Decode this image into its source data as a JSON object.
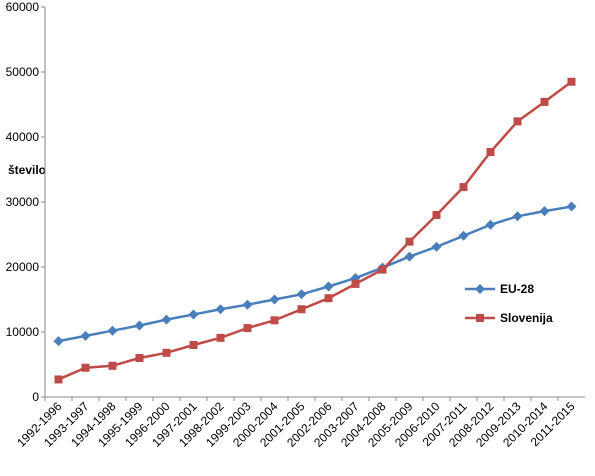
{
  "chart_data": {
    "type": "line",
    "y_label": "število",
    "categories": [
      "1992-1996",
      "1993-1997",
      "1994-1998",
      "1995-1999",
      "1996-2000",
      "1997-2001",
      "1998-2002",
      "1999-2003",
      "2000-2004",
      "2001-2005",
      "2002-2006",
      "2003-2007",
      "2004-2008",
      "2005-2009",
      "2006-2010",
      "2007-2011",
      "2008-2012",
      "2009-2013",
      "2010-2014",
      "2011-2015"
    ],
    "series": [
      {
        "name": "EU-28",
        "color": "#4a7ebb",
        "marker": "diamond",
        "values": [
          8600,
          9400,
          10200,
          11000,
          11900,
          12700,
          13500,
          14200,
          15000,
          15800,
          17000,
          18300,
          19900,
          21600,
          23100,
          24800,
          26500,
          27800,
          28600,
          29300
        ]
      },
      {
        "name": "Slovenija",
        "color": "#be4b48",
        "marker": "square",
        "values": [
          2700,
          4500,
          4800,
          6000,
          6800,
          8000,
          9100,
          10600,
          11800,
          13500,
          15200,
          17400,
          19600,
          23900,
          28000,
          32300,
          37700,
          42400,
          45400,
          48500
        ]
      }
    ],
    "ylim": [
      0,
      60000
    ],
    "yticks": [
      0,
      10000,
      20000,
      30000,
      40000,
      50000,
      60000
    ],
    "grid": false,
    "legend": "right"
  }
}
